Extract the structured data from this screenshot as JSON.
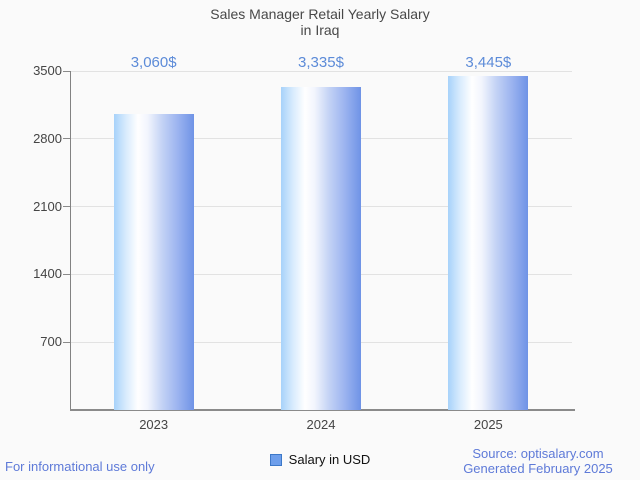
{
  "title": {
    "line1": "Sales Manager Retail Yearly Salary",
    "line2": "in Iraq"
  },
  "chart_data": {
    "type": "bar",
    "title": "Sales Manager Retail Yearly Salary in Iraq",
    "categories": [
      "2023",
      "2024",
      "2025"
    ],
    "values": [
      3060,
      3335,
      3445
    ],
    "value_labels": [
      "3,060$",
      "3,335$",
      "3,445$"
    ],
    "xlabel": "",
    "ylabel": "",
    "ylim": [
      0,
      3500
    ],
    "yticks": [
      700,
      1400,
      2100,
      2800,
      3500
    ],
    "grid": true,
    "legend_position": "bottom",
    "series_name": "Salary in USD",
    "bar_gradient": [
      "#a7d2fa",
      "#ffffff",
      "#6f93e6"
    ]
  },
  "legend": {
    "label": "Salary in USD",
    "swatch_fill": "#6d9eeb",
    "swatch_border": "#3c78c8"
  },
  "footer": {
    "disclaimer": "For informational use only",
    "source": "Source: optisalary.com",
    "generated": "Generated February 2025"
  },
  "colors": {
    "background": "#fafafa",
    "value_label_text": "#5c8bd8",
    "footer_text": "#5e7ad8",
    "axis": "#8a8a8a",
    "grid_line": "#e2e2e2",
    "tick_text": "#454545",
    "title_text": "#484848"
  }
}
